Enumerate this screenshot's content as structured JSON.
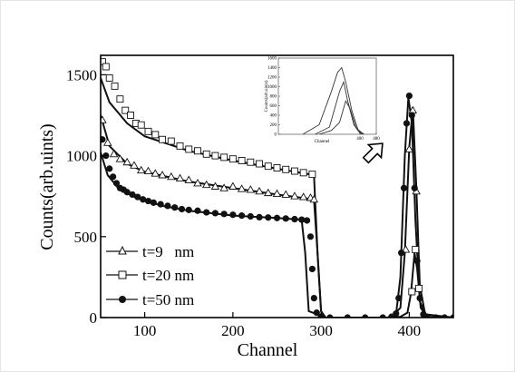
{
  "chart_data": [
    {
      "type": "scatter",
      "xlabel": "Channel",
      "ylabel": "Counts(arb.uints)",
      "xlim": [
        50,
        450
      ],
      "ylim": [
        0,
        1620
      ],
      "xticks": [
        100,
        200,
        300,
        400
      ],
      "yticks": [
        0,
        500,
        1000,
        1500
      ],
      "legend_position": "bottom-left",
      "grid": false,
      "series": [
        {
          "name": "t=9   nm",
          "marker": "triangle-open",
          "plateau_fit": [
            [
              50,
              1250
            ],
            [
              60,
              1060
            ],
            [
              80,
              950
            ],
            [
              100,
              900
            ],
            [
              150,
              840
            ],
            [
              200,
              800
            ],
            [
              250,
              760
            ],
            [
              292,
              730
            ]
          ],
          "peak_fit": [
            [
              380,
              5
            ],
            [
              390,
              60
            ],
            [
              395,
              400
            ],
            [
              400,
              1050
            ],
            [
              404,
              1300
            ],
            [
              408,
              800
            ],
            [
              412,
              200
            ],
            [
              418,
              20
            ]
          ],
          "data": [
            [
              52,
              1220
            ],
            [
              58,
              1080
            ],
            [
              65,
              1010
            ],
            [
              72,
              980
            ],
            [
              80,
              960
            ],
            [
              88,
              940
            ],
            [
              96,
              910
            ],
            [
              104,
              905
            ],
            [
              112,
              890
            ],
            [
              120,
              880
            ],
            [
              130,
              870
            ],
            [
              140,
              860
            ],
            [
              150,
              850
            ],
            [
              160,
              830
            ],
            [
              170,
              820
            ],
            [
              180,
              810
            ],
            [
              190,
              800
            ],
            [
              200,
              810
            ],
            [
              210,
              795
            ],
            [
              220,
              790
            ],
            [
              230,
              780
            ],
            [
              240,
              770
            ],
            [
              250,
              765
            ],
            [
              260,
              760
            ],
            [
              270,
              750
            ],
            [
              280,
              745
            ],
            [
              288,
              740
            ],
            [
              292,
              730
            ],
            [
              396,
              420
            ],
            [
              400,
              1040
            ],
            [
              404,
              1280
            ],
            [
              408,
              780
            ]
          ]
        },
        {
          "name": "t=20 nm",
          "marker": "square-open",
          "plateau_fit": [
            [
              50,
              1480
            ],
            [
              60,
              1330
            ],
            [
              80,
              1200
            ],
            [
              100,
              1120
            ],
            [
              150,
              1030
            ],
            [
              200,
              970
            ],
            [
              250,
              920
            ],
            [
              292,
              880
            ]
          ],
          "peak_fit": [
            [
              390,
              5
            ],
            [
              398,
              30
            ],
            [
              402,
              150
            ],
            [
              406,
              400
            ],
            [
              409,
              300
            ],
            [
              413,
              60
            ],
            [
              420,
              5
            ]
          ],
          "data": [
            [
              52,
              1580
            ],
            [
              56,
              1550
            ],
            [
              60,
              1480
            ],
            [
              66,
              1430
            ],
            [
              72,
              1350
            ],
            [
              78,
              1280
            ],
            [
              84,
              1250
            ],
            [
              90,
              1200
            ],
            [
              96,
              1190
            ],
            [
              104,
              1150
            ],
            [
              112,
              1130
            ],
            [
              120,
              1100
            ],
            [
              130,
              1090
            ],
            [
              140,
              1060
            ],
            [
              150,
              1040
            ],
            [
              160,
              1030
            ],
            [
              170,
              1010
            ],
            [
              180,
              1000
            ],
            [
              190,
              990
            ],
            [
              200,
              980
            ],
            [
              210,
              970
            ],
            [
              220,
              960
            ],
            [
              230,
              950
            ],
            [
              240,
              935
            ],
            [
              250,
              925
            ],
            [
              260,
              915
            ],
            [
              270,
              905
            ],
            [
              280,
              895
            ],
            [
              290,
              885
            ],
            [
              403,
              160
            ],
            [
              407,
              420
            ],
            [
              411,
              180
            ]
          ]
        },
        {
          "name": "t=50 nm",
          "marker": "circle-filled",
          "plateau_fit": [
            [
              50,
              1020
            ],
            [
              58,
              880
            ],
            [
              70,
              800
            ],
            [
              90,
              740
            ],
            [
              120,
              690
            ],
            [
              150,
              660
            ],
            [
              200,
              630
            ],
            [
              250,
              615
            ],
            [
              278,
              605
            ]
          ],
          "peak_fit": [
            [
              375,
              0
            ],
            [
              385,
              20
            ],
            [
              390,
              250
            ],
            [
              395,
              1000
            ],
            [
              399,
              1360
            ],
            [
              403,
              1200
            ],
            [
              407,
              600
            ],
            [
              412,
              100
            ],
            [
              420,
              5
            ],
            [
              430,
              0
            ]
          ],
          "data": [
            [
              52,
              1100
            ],
            [
              56,
              1000
            ],
            [
              60,
              920
            ],
            [
              64,
              870
            ],
            [
              68,
              830
            ],
            [
              72,
              800
            ],
            [
              76,
              790
            ],
            [
              80,
              775
            ],
            [
              86,
              760
            ],
            [
              92,
              745
            ],
            [
              98,
              730
            ],
            [
              104,
              720
            ],
            [
              110,
              710
            ],
            [
              118,
              700
            ],
            [
              126,
              690
            ],
            [
              134,
              680
            ],
            [
              142,
              670
            ],
            [
              150,
              665
            ],
            [
              160,
              660
            ],
            [
              170,
              650
            ],
            [
              180,
              645
            ],
            [
              190,
              640
            ],
            [
              200,
              635
            ],
            [
              210,
              630
            ],
            [
              220,
              625
            ],
            [
              230,
              620
            ],
            [
              240,
              618
            ],
            [
              250,
              615
            ],
            [
              260,
              612
            ],
            [
              270,
              608
            ],
            [
              278,
              605
            ],
            [
              284,
              600
            ],
            [
              288,
              500
            ],
            [
              290,
              300
            ],
            [
              292,
              120
            ],
            [
              295,
              30
            ],
            [
              300,
              5
            ],
            [
              310,
              0
            ],
            [
              330,
              0
            ],
            [
              350,
              0
            ],
            [
              370,
              0
            ],
            [
              380,
              5
            ],
            [
              385,
              25
            ],
            [
              388,
              120
            ],
            [
              391,
              400
            ],
            [
              394,
              800
            ],
            [
              397,
              1200
            ],
            [
              400,
              1370
            ],
            [
              403,
              1250
            ],
            [
              406,
              800
            ],
            [
              409,
              350
            ],
            [
              412,
              120
            ],
            [
              416,
              20
            ],
            [
              420,
              5
            ],
            [
              430,
              0
            ],
            [
              440,
              0
            ],
            [
              450,
              0
            ]
          ]
        }
      ]
    },
    {
      "type": "line",
      "xlabel": "Channel",
      "ylabel": "Counts(arb.uints)",
      "xlim": [
        0,
        480
      ],
      "ylim": [
        0,
        1600
      ],
      "xticks": [
        400,
        480
      ],
      "yticks": [
        0,
        200,
        400,
        600,
        800,
        1000,
        1200,
        1400,
        1600
      ],
      "series": [
        {
          "values": [
            [
              120,
              0
            ],
            [
              200,
              200
            ],
            [
              260,
              900
            ],
            [
              290,
              1300
            ],
            [
              310,
              1400
            ],
            [
              330,
              1100
            ],
            [
              360,
              500
            ],
            [
              390,
              100
            ],
            [
              420,
              0
            ]
          ]
        },
        {
          "values": [
            [
              180,
              0
            ],
            [
              250,
              150
            ],
            [
              300,
              900
            ],
            [
              320,
              1100
            ],
            [
              340,
              700
            ],
            [
              370,
              200
            ],
            [
              400,
              20
            ],
            [
              420,
              0
            ]
          ]
        },
        {
          "values": [
            [
              200,
              0
            ],
            [
              260,
              80
            ],
            [
              300,
              250
            ],
            [
              330,
              700
            ],
            [
              350,
              550
            ],
            [
              380,
              150
            ],
            [
              410,
              0
            ]
          ]
        }
      ]
    }
  ],
  "colors": {
    "series": "#111111",
    "frame": "#e4e4e4"
  },
  "icons": {
    "arrow": "hollow-arrow-up-right"
  }
}
